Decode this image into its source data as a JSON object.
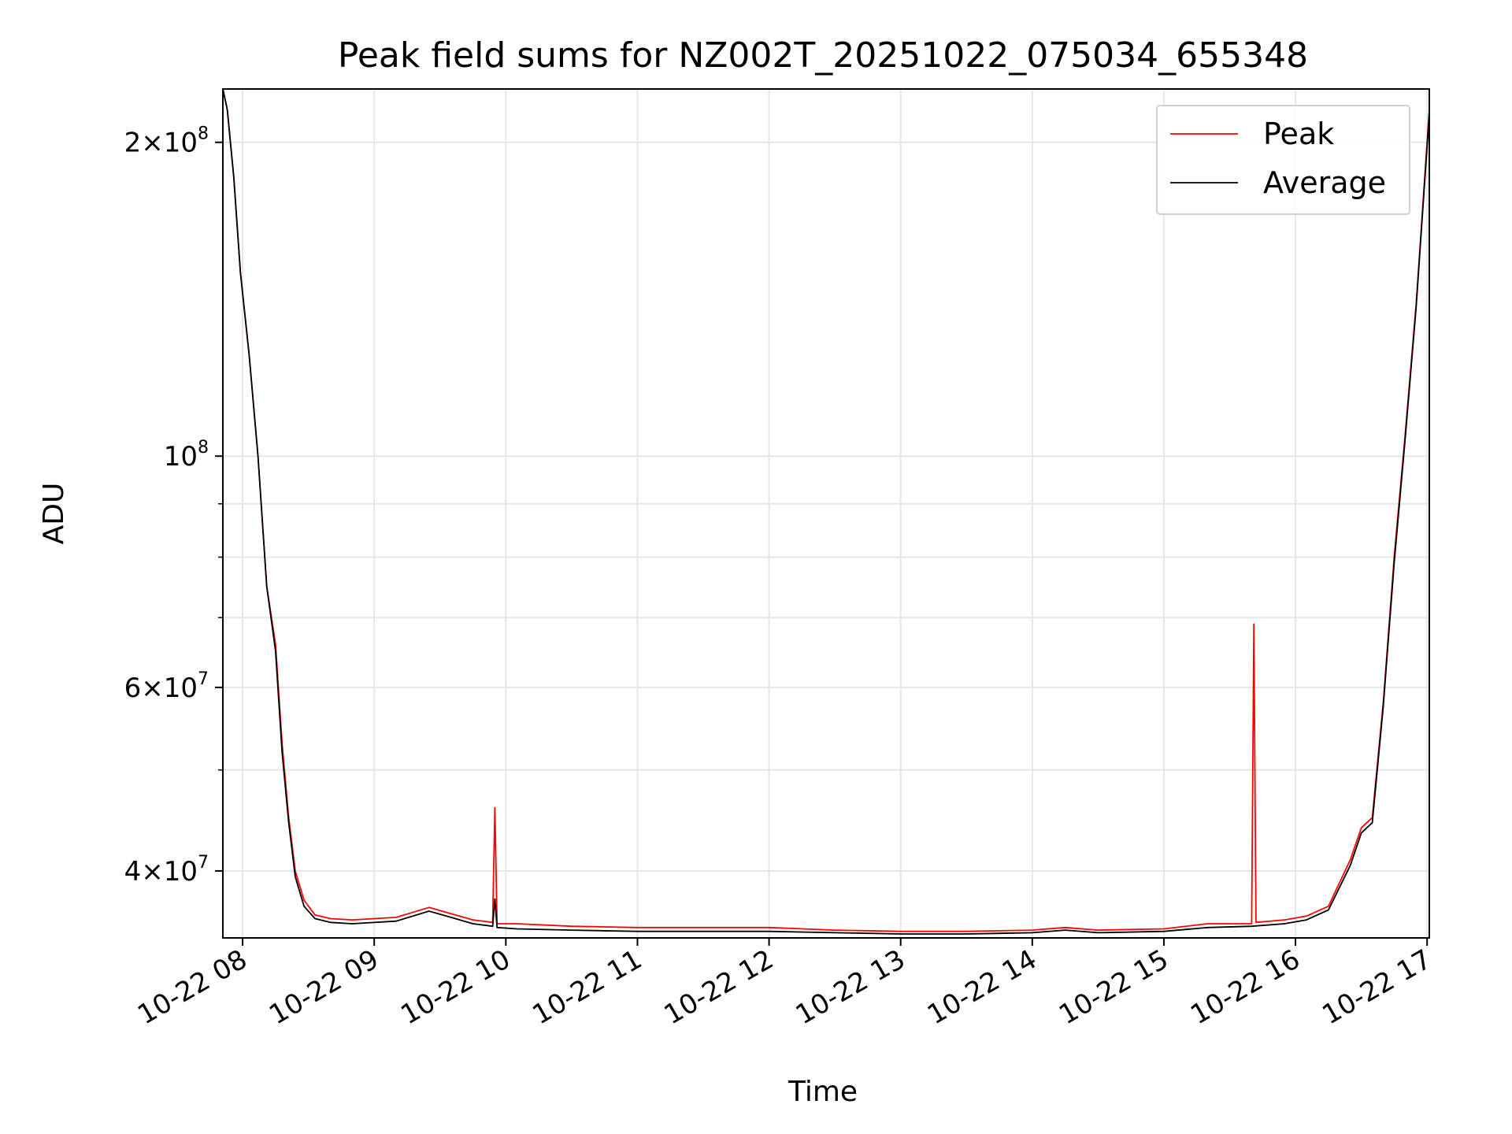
{
  "chart_data": {
    "type": "line",
    "title": "Peak field sums for NZ002T_20251022_075034_655348",
    "xlabel": "Time",
    "ylabel": "ADU",
    "yscale": "log",
    "xlim": [
      "2025-10-22 07:51",
      "2025-10-22 17:01"
    ],
    "ylim": [
      34500000,
      225000000
    ],
    "grid": true,
    "legend_position": "top-right",
    "x_tick_labels": [
      "10-22 08",
      "10-22 09",
      "10-22 10",
      "10-22 11",
      "10-22 12",
      "10-22 13",
      "10-22 14",
      "10-22 15",
      "10-22 16",
      "10-22 17"
    ],
    "x_ticks": [
      "2025-10-22 08:00",
      "2025-10-22 09:00",
      "2025-10-22 10:00",
      "2025-10-22 11:00",
      "2025-10-22 12:00",
      "2025-10-22 13:00",
      "2025-10-22 14:00",
      "2025-10-22 15:00",
      "2025-10-22 16:00",
      "2025-10-22 17:00"
    ],
    "y_major_ticks": [
      {
        "value": 200000000,
        "mantissa": "2",
        "exponent": "8"
      },
      {
        "value": 100000000,
        "mantissa": "",
        "exponent": "8"
      },
      {
        "value": 60000000,
        "mantissa": "6",
        "exponent": "7"
      },
      {
        "value": 40000000,
        "mantissa": "4",
        "exponent": "7"
      }
    ],
    "y_minor_ticks": [
      90000000,
      80000000,
      70000000,
      50000000
    ],
    "series": [
      {
        "name": "Peak",
        "color": "#ff0000",
        "x": [
          "2025-10-22 07:51",
          "2025-10-22 07:53",
          "2025-10-22 07:56",
          "2025-10-22 07:59",
          "2025-10-22 08:03",
          "2025-10-22 08:07",
          "2025-10-22 08:11",
          "2025-10-22 08:15",
          "2025-10-22 08:18",
          "2025-10-22 08:21",
          "2025-10-22 08:24",
          "2025-10-22 08:28",
          "2025-10-22 08:33",
          "2025-10-22 08:40",
          "2025-10-22 08:50",
          "2025-10-22 09:10",
          "2025-10-22 09:25",
          "2025-10-22 09:35",
          "2025-10-22 09:45",
          "2025-10-22 09:54",
          "2025-10-22 09:55",
          "2025-10-22 09:56",
          "2025-10-22 10:05",
          "2025-10-22 10:30",
          "2025-10-22 11:00",
          "2025-10-22 11:30",
          "2025-10-22 12:00",
          "2025-10-22 12:30",
          "2025-10-22 13:00",
          "2025-10-22 13:30",
          "2025-10-22 14:00",
          "2025-10-22 14:15",
          "2025-10-22 14:30",
          "2025-10-22 15:00",
          "2025-10-22 15:20",
          "2025-10-22 15:40",
          "2025-10-22 15:41",
          "2025-10-22 15:42",
          "2025-10-22 15:55",
          "2025-10-22 16:05",
          "2025-10-22 16:15",
          "2025-10-22 16:25",
          "2025-10-22 16:30",
          "2025-10-22 16:35",
          "2025-10-22 16:40",
          "2025-10-22 16:45",
          "2025-10-22 16:50",
          "2025-10-22 16:55",
          "2025-10-22 17:01"
        ],
        "values": [
          225000000,
          215000000,
          185000000,
          150000000,
          125000000,
          100000000,
          75000000,
          66000000,
          53000000,
          45000000,
          40000000,
          37500000,
          36300000,
          36000000,
          35900000,
          36100000,
          36900000,
          36400000,
          35900000,
          35700000,
          46000000,
          35600000,
          35600000,
          35400000,
          35300000,
          35300000,
          35300000,
          35100000,
          35000000,
          35000000,
          35100000,
          35300000,
          35100000,
          35200000,
          35600000,
          35600000,
          69000000,
          35700000,
          35900000,
          36200000,
          37000000,
          41000000,
          44000000,
          45000000,
          58000000,
          80000000,
          105000000,
          140000000,
          215000000
        ]
      },
      {
        "name": "Average",
        "color": "#000000",
        "x": [
          "2025-10-22 07:51",
          "2025-10-22 07:53",
          "2025-10-22 07:56",
          "2025-10-22 07:59",
          "2025-10-22 08:03",
          "2025-10-22 08:07",
          "2025-10-22 08:11",
          "2025-10-22 08:15",
          "2025-10-22 08:18",
          "2025-10-22 08:21",
          "2025-10-22 08:24",
          "2025-10-22 08:28",
          "2025-10-22 08:33",
          "2025-10-22 08:40",
          "2025-10-22 08:50",
          "2025-10-22 09:10",
          "2025-10-22 09:25",
          "2025-10-22 09:35",
          "2025-10-22 09:45",
          "2025-10-22 09:54",
          "2025-10-22 09:55",
          "2025-10-22 09:56",
          "2025-10-22 10:05",
          "2025-10-22 10:30",
          "2025-10-22 11:00",
          "2025-10-22 11:30",
          "2025-10-22 12:00",
          "2025-10-22 12:30",
          "2025-10-22 13:00",
          "2025-10-22 13:30",
          "2025-10-22 14:00",
          "2025-10-22 14:15",
          "2025-10-22 14:30",
          "2025-10-22 15:00",
          "2025-10-22 15:20",
          "2025-10-22 15:40",
          "2025-10-22 15:55",
          "2025-10-22 16:05",
          "2025-10-22 16:15",
          "2025-10-22 16:25",
          "2025-10-22 16:30",
          "2025-10-22 16:35",
          "2025-10-22 16:40",
          "2025-10-22 16:45",
          "2025-10-22 16:50",
          "2025-10-22 16:55",
          "2025-10-22 17:01"
        ],
        "values": [
          225000000,
          215000000,
          185000000,
          150000000,
          125000000,
          100000000,
          75000000,
          65000000,
          52000000,
          44500000,
          39500000,
          37000000,
          36000000,
          35700000,
          35600000,
          35800000,
          36600000,
          36100000,
          35600000,
          35400000,
          37600000,
          35300000,
          35200000,
          35100000,
          35000000,
          35000000,
          35000000,
          34900000,
          34800000,
          34800000,
          34900000,
          35100000,
          34900000,
          35000000,
          35300000,
          35400000,
          35600000,
          35900000,
          36700000,
          40500000,
          43500000,
          44500000,
          57500000,
          79000000,
          104000000,
          139000000,
          213000000
        ]
      }
    ]
  }
}
